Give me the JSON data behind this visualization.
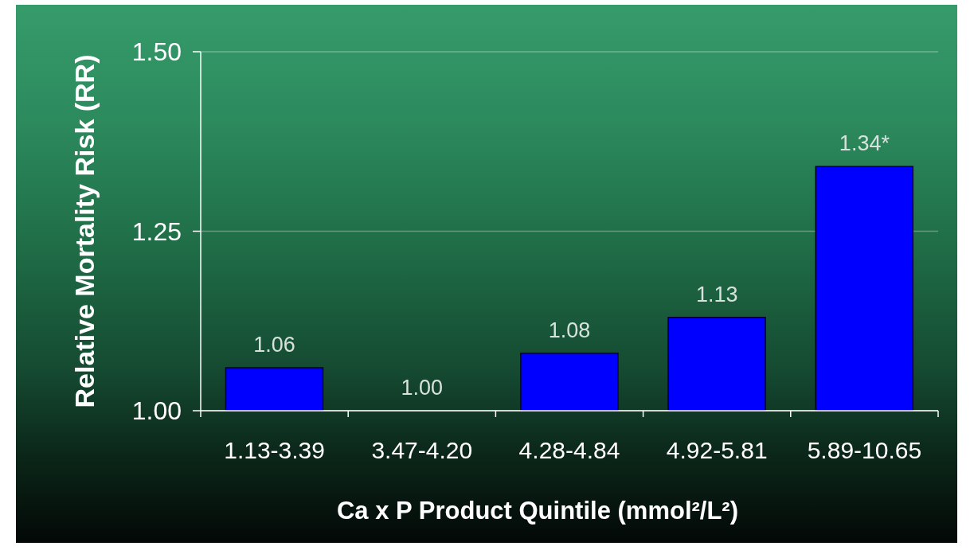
{
  "chart_data": {
    "type": "bar",
    "xlabel": "Ca x P Product Quintile (mmol²/L²)",
    "ylabel": "Relative Mortality Risk (RR)",
    "categories": [
      "1.13-3.39",
      "3.47-4.20",
      "4.28-4.84",
      "4.92-5.81",
      "5.89-10.65"
    ],
    "values": [
      1.06,
      1.0,
      1.08,
      1.13,
      1.34
    ],
    "value_labels": [
      "1.06",
      "1.00",
      "1.08",
      "1.13",
      "1.34*"
    ],
    "color": "#0000ff",
    "ylim": [
      1,
      1.5
    ],
    "yticks": [
      {
        "value": 1,
        "label": "1.00"
      },
      1.25,
      {
        "value": 1.5,
        "label": "1.50"
      }
    ],
    "grid": "y"
  }
}
